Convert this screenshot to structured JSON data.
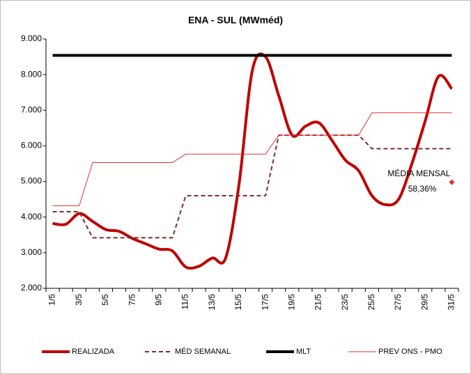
{
  "chart_data": {
    "type": "line",
    "title": "ENA - SUL (MWméd)",
    "categories": [
      "1/5",
      null,
      "3/5",
      null,
      "5/5",
      null,
      "7/5",
      null,
      "9/5",
      null,
      "11/5",
      null,
      "13/5",
      null,
      "15/5",
      null,
      "17/5",
      null,
      "19/5",
      null,
      "21/5",
      null,
      "23/5",
      null,
      "25/5",
      null,
      "27/5",
      null,
      "29/5",
      null,
      "31/5"
    ],
    "series": [
      {
        "name": "REALIZADA",
        "color": "#c00000",
        "style": "smooth",
        "values": [
          3820,
          3800,
          4100,
          3880,
          3650,
          3600,
          3400,
          3250,
          3100,
          3050,
          2600,
          2620,
          2850,
          2850,
          4900,
          8100,
          8500,
          7400,
          6300,
          6550,
          6650,
          6150,
          5600,
          5300,
          4600,
          4350,
          4500,
          5500,
          6700,
          7950,
          7600
        ]
      },
      {
        "name": "MÉD SEMANAL",
        "color": "#7b2c2c",
        "style": "dashed",
        "values": [
          4150,
          4150,
          4150,
          3420,
          3420,
          3420,
          3420,
          3420,
          3420,
          3420,
          4600,
          4600,
          4600,
          4600,
          4600,
          4600,
          4600,
          6300,
          6300,
          6300,
          6300,
          6300,
          6300,
          6300,
          5920,
          5920,
          5920,
          5920,
          5920,
          5920,
          5920
        ]
      },
      {
        "name": "MLT",
        "color": "#000000",
        "style": "thick",
        "values": [
          8540,
          8540,
          8540,
          8540,
          8540,
          8540,
          8540,
          8540,
          8540,
          8540,
          8540,
          8540,
          8540,
          8540,
          8540,
          8540,
          8540,
          8540,
          8540,
          8540,
          8540,
          8540,
          8540,
          8540,
          8540,
          8540,
          8540,
          8540,
          8540,
          8540,
          8540
        ]
      },
      {
        "name": "PREV ONS - PMO",
        "color": "#e03030",
        "style": "thin",
        "values": [
          4320,
          4320,
          4320,
          5530,
          5530,
          5530,
          5530,
          5530,
          5530,
          5530,
          5770,
          5770,
          5770,
          5770,
          5770,
          5770,
          5770,
          6300,
          6300,
          6300,
          6300,
          6300,
          6300,
          6300,
          6930,
          6930,
          6930,
          6930,
          6930,
          6930,
          6930
        ]
      }
    ],
    "annotation": {
      "text": [
        "MÉDIA MENSAL",
        "58,36%"
      ],
      "value": 4980,
      "color": "#e03030"
    },
    "ylim": [
      2000,
      9000
    ],
    "yticks": [
      {
        "value": 2000,
        "label": "2.000"
      },
      {
        "value": 3000,
        "label": "3.000"
      },
      {
        "value": 4000,
        "label": "4.000"
      },
      {
        "value": 5000,
        "label": "5.000"
      },
      {
        "value": 6000,
        "label": "6.000"
      },
      {
        "value": 7000,
        "label": "7.000"
      },
      {
        "value": 8000,
        "label": "8.000"
      },
      {
        "value": 9000,
        "label": "9.000"
      }
    ],
    "grid": false,
    "legend": "bottom"
  }
}
